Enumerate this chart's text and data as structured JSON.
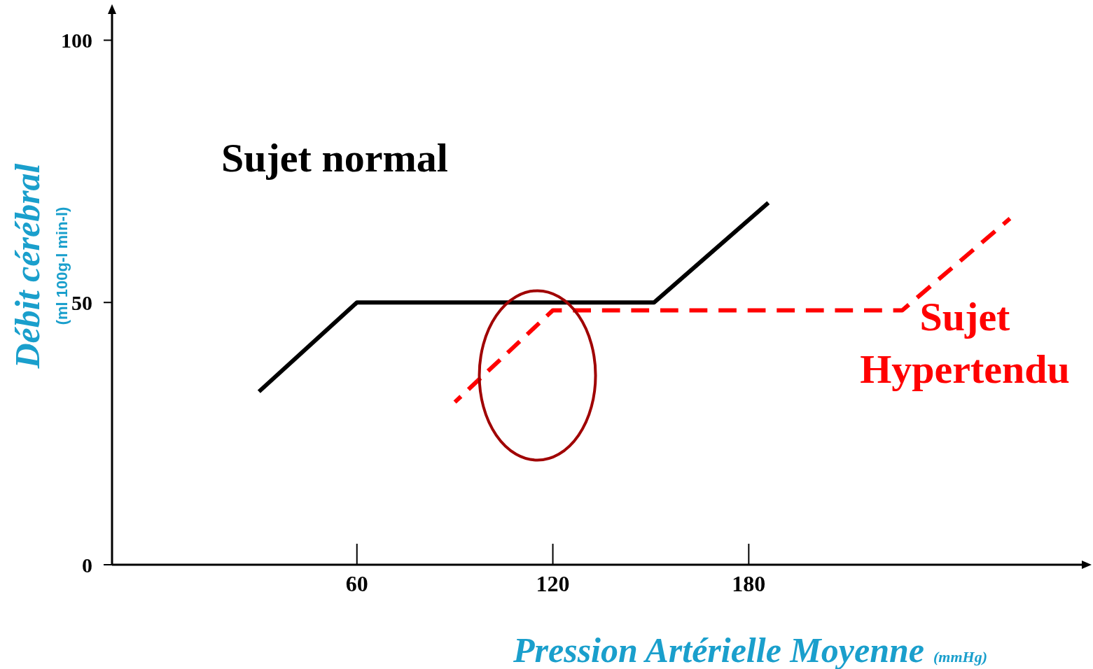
{
  "chart_data": {
    "type": "line",
    "xlabel": "Pression Artérielle Moyenne",
    "ylabel": "Débit cérébral",
    "annotations": [
      "(ml 100g-l min-l)",
      "(mmHg)"
    ],
    "xlim": [
      -15,
      282
    ],
    "xticks": [
      60,
      120,
      180
    ],
    "ylim": [
      0,
      105
    ],
    "yticks": [
      0,
      50,
      100
    ],
    "grid": false,
    "series": [
      {
        "name": "Sujet normal",
        "color": "#000000",
        "line_style": "solid",
        "x": [
          30,
          60,
          151,
          186
        ],
        "values": [
          33,
          50,
          50,
          69
        ]
      },
      {
        "name": "Sujet Hypertendu",
        "color": "#ff0000",
        "line_style": "dashed",
        "x": [
          90,
          120,
          227,
          260
        ],
        "values": [
          31,
          48.5,
          48.5,
          66
        ]
      }
    ]
  }
}
